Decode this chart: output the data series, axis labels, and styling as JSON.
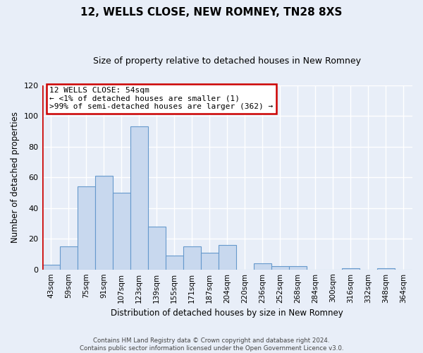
{
  "title": "12, WELLS CLOSE, NEW ROMNEY, TN28 8XS",
  "subtitle": "Size of property relative to detached houses in New Romney",
  "xlabel": "Distribution of detached houses by size in New Romney",
  "ylabel": "Number of detached properties",
  "bin_labels": [
    "43sqm",
    "59sqm",
    "75sqm",
    "91sqm",
    "107sqm",
    "123sqm",
    "139sqm",
    "155sqm",
    "171sqm",
    "187sqm",
    "204sqm",
    "220sqm",
    "236sqm",
    "252sqm",
    "268sqm",
    "284sqm",
    "300sqm",
    "316sqm",
    "332sqm",
    "348sqm",
    "364sqm"
  ],
  "bar_values": [
    3,
    15,
    54,
    61,
    50,
    93,
    28,
    9,
    15,
    11,
    16,
    0,
    4,
    2,
    2,
    0,
    0,
    1,
    0,
    1,
    0
  ],
  "bar_color": "#c8d8ee",
  "bar_edge_color": "#6699cc",
  "highlight_color": "#cc0000",
  "ylim": [
    0,
    120
  ],
  "yticks": [
    0,
    20,
    40,
    60,
    80,
    100,
    120
  ],
  "annotation_box_text": "12 WELLS CLOSE: 54sqm\n← <1% of detached houses are smaller (1)\n>99% of semi-detached houses are larger (362) →",
  "footer_text": "Contains HM Land Registry data © Crown copyright and database right 2024.\nContains public sector information licensed under the Open Government Licence v3.0.",
  "background_color": "#e8eef8",
  "plot_bg_color": "#e8eef8",
  "grid_color": "#d0d8e8",
  "vline_x": 0.5
}
